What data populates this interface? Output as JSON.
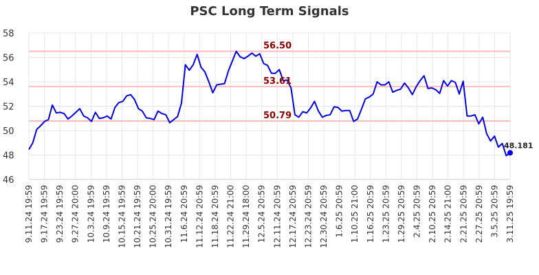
{
  "chart_data": {
    "type": "line",
    "title": "PSC Long Term Signals",
    "xlabel": "",
    "ylabel": "",
    "ylim": [
      46,
      58
    ],
    "yticks": [
      "46",
      "48",
      "50",
      "52",
      "54",
      "56",
      "58"
    ],
    "xtick_labels": [
      "9.11.24 19:59",
      "9.17.24 19:59",
      "9.23.24 19:59",
      "9.27.24 20:00",
      "10.3.24 19:59",
      "10.9.24 19:59",
      "10.15.24 19:59",
      "10.21.24 19:59",
      "10.25.24 20:00",
      "10.31.24 19:59",
      "11.6.24 20:59",
      "11.12.24 20:59",
      "11.18.24 20:59",
      "11.22.24 21:00",
      "11.29.24 18:00",
      "12.5.24 20:59",
      "12.11.24 20:59",
      "12.17.24 20:59",
      "12.23.24 20:59",
      "12.30.24 20:59",
      "1.6.25 20:59",
      "1.10.25 21:00",
      "1.16.25 20:59",
      "1.23.25 20:59",
      "1.29.25 20:59",
      "2.4.25 20:59",
      "2.10.25 20:59",
      "2.14.25 21:00",
      "2.21.25 20:59",
      "2.27.25 20:59",
      "3.5.25 20:59",
      "3.11.25 19:59"
    ],
    "grid": true,
    "series": [
      {
        "color": "#0000dd",
        "values": [
          48.45,
          49.0,
          50.1,
          50.4,
          50.75,
          50.9,
          52.1,
          51.45,
          51.5,
          51.4,
          50.95,
          51.2,
          51.5,
          51.8,
          51.2,
          51.05,
          50.75,
          51.5,
          51.0,
          51.05,
          51.2,
          50.95,
          51.9,
          52.3,
          52.4,
          52.85,
          52.95,
          52.55,
          51.8,
          51.6,
          51.05,
          51.0,
          50.9,
          51.6,
          51.4,
          51.3,
          50.65,
          50.9,
          51.15,
          52.25,
          55.4,
          54.95,
          55.4,
          56.25,
          55.2,
          54.8,
          54.0,
          53.1,
          53.75,
          53.8,
          53.85,
          54.9,
          55.7,
          56.5,
          56.05,
          55.9,
          56.1,
          56.35,
          56.1,
          56.3,
          55.5,
          55.35,
          54.7,
          54.7,
          55.0,
          54.1,
          54.15,
          53.5,
          51.3,
          51.1,
          51.55,
          51.45,
          51.85,
          52.4,
          51.6,
          51.1,
          51.25,
          51.3,
          51.95,
          51.9,
          51.6,
          51.65,
          51.65,
          50.75,
          50.95,
          51.75,
          52.6,
          52.75,
          53.0,
          54.0,
          53.75,
          53.75,
          54.0,
          53.15,
          53.3,
          53.4,
          53.9,
          53.5,
          52.95,
          53.6,
          54.1,
          54.5,
          53.45,
          53.5,
          53.35,
          53.05,
          54.1,
          53.65,
          54.1,
          53.95,
          53.0,
          54.05,
          51.2,
          51.2,
          51.3,
          50.55,
          51.1,
          49.75,
          49.15,
          49.55,
          48.65,
          48.95,
          47.95,
          48.181
        ]
      }
    ],
    "last_value_label": "48.181",
    "hlines": [
      {
        "value": 56.5,
        "label": "56.50",
        "color": "#ffbbbb"
      },
      {
        "value": 53.61,
        "label": "53.61",
        "color": "#ffbbbb"
      },
      {
        "value": 50.79,
        "label": "50.79",
        "color": "#ffbbbb"
      }
    ]
  }
}
